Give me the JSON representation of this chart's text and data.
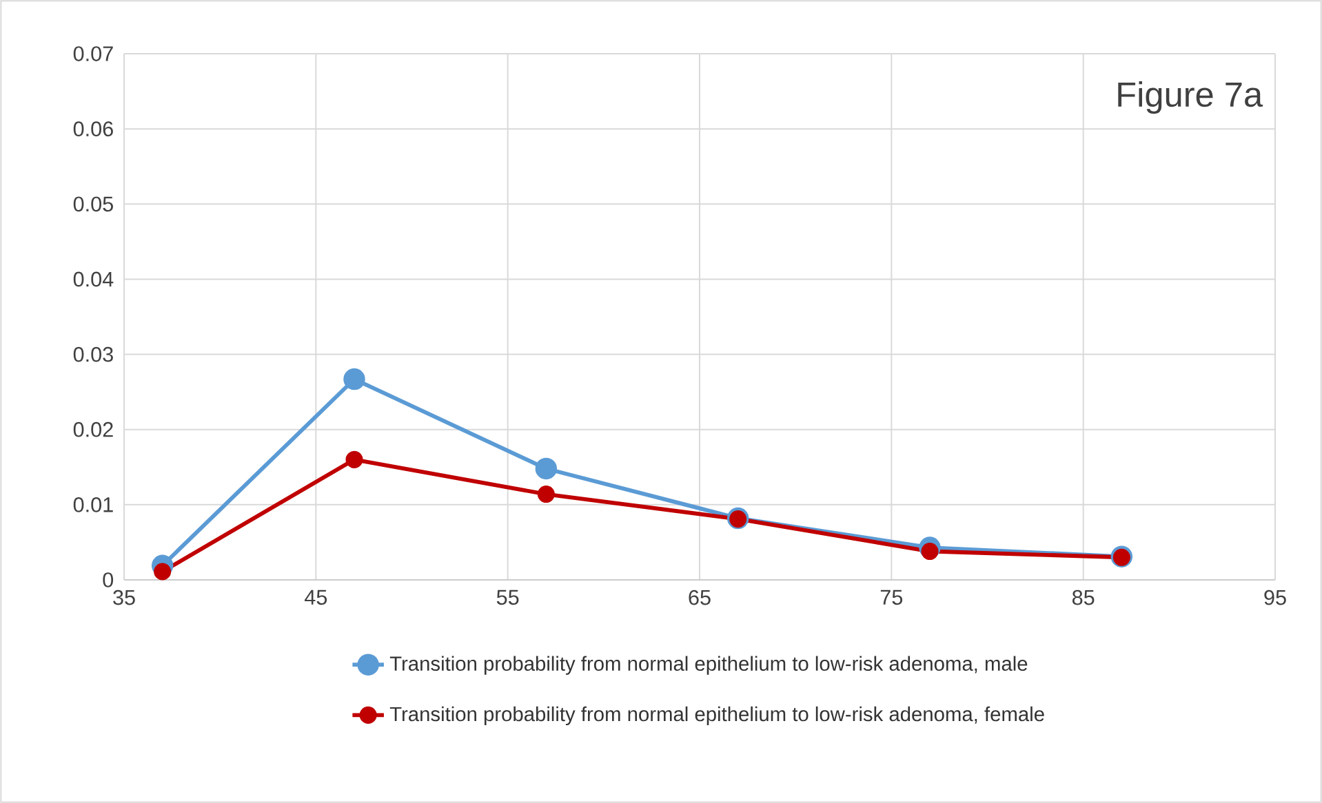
{
  "chart_data": {
    "type": "line",
    "annotations": [
      "Figure 7a"
    ],
    "x": [
      37,
      47,
      57,
      67,
      77,
      87
    ],
    "series": [
      {
        "name": "Transition probability from normal epithelium to low-risk adenoma, male",
        "color": "#5b9bd5",
        "values": [
          0.0019,
          0.0267,
          0.0148,
          0.0082,
          0.0043,
          0.0031
        ]
      },
      {
        "name": "Transition probability from normal epithelium to low-risk adenoma, female",
        "color": "#c00000",
        "values": [
          0.0011,
          0.016,
          0.0114,
          0.0081,
          0.0038,
          0.003
        ]
      }
    ],
    "xlim": [
      35,
      95
    ],
    "xticks": [
      35,
      45,
      55,
      65,
      75,
      85,
      95
    ],
    "ylim": [
      0,
      0.07
    ],
    "yticks": [
      {
        "value": 0,
        "label": "0"
      },
      0.01,
      0.02,
      0.03,
      0.04,
      0.05,
      0.06,
      0.07
    ],
    "grid": true,
    "legend": "bottom",
    "marker": "circle",
    "line_style": "solid"
  }
}
